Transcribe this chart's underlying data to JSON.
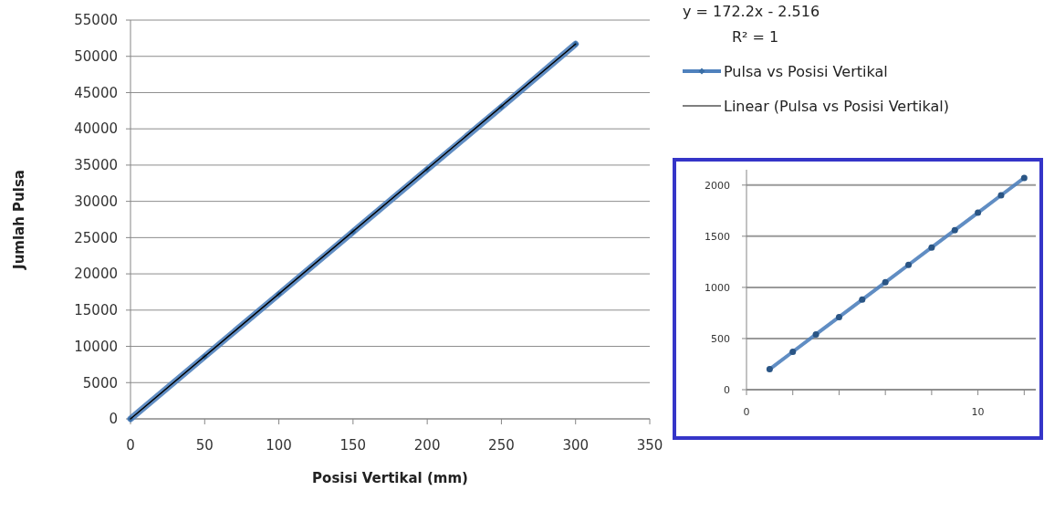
{
  "chart_data": [
    {
      "type": "line",
      "xlabel": "Posisi Vertikal (mm)",
      "ylabel": "Jumlah Pulsa",
      "annotations": [
        "y = 172.2x - 2.516",
        "R² = 1"
      ],
      "xlim": [
        0,
        350
      ],
      "xticks": [
        0,
        50,
        100,
        150,
        200,
        250,
        300,
        350
      ],
      "ylim": [
        0,
        55000
      ],
      "yticks": [
        0,
        5000,
        10000,
        15000,
        20000,
        25000,
        30000,
        35000,
        40000,
        45000,
        50000,
        55000
      ],
      "grid": "y",
      "legend": "top right",
      "marker": "diamond",
      "series": [
        {
          "name": "Pulsa vs Posisi Vertikal",
          "color": "#4f81bd",
          "x": [
            0,
            50,
            100,
            150,
            200,
            250,
            300
          ],
          "values": [
            0,
            8600,
            17200,
            25800,
            34400,
            43000,
            51700
          ]
        },
        {
          "name": "Linear (Pulsa vs Posisi Vertikal)",
          "type": "line",
          "color": "#000000",
          "marker": "none",
          "x": [
            0,
            300
          ],
          "values": [
            0,
            51700
          ]
        }
      ]
    },
    {
      "type": "line",
      "xlim": [
        0,
        12.5
      ],
      "xticks": [
        0,
        {
          "value": 2,
          "label": null
        },
        {
          "value": 4,
          "label": null
        },
        {
          "value": 6,
          "label": null
        },
        {
          "value": 8,
          "label": null
        },
        10,
        {
          "value": 12,
          "label": null
        }
      ],
      "ylim": [
        0,
        2150
      ],
      "yticks": [
        0,
        500,
        1000,
        1500,
        2000
      ],
      "grid": "y",
      "marker": "circle",
      "series": [
        {
          "color": "#4f81bd",
          "x": [
            1,
            2,
            3,
            4,
            5,
            6,
            7,
            8,
            9,
            10,
            11,
            12
          ],
          "values": [
            200,
            370,
            540,
            710,
            880,
            1050,
            1220,
            1390,
            1560,
            1730,
            1900,
            2070
          ]
        }
      ]
    }
  ]
}
